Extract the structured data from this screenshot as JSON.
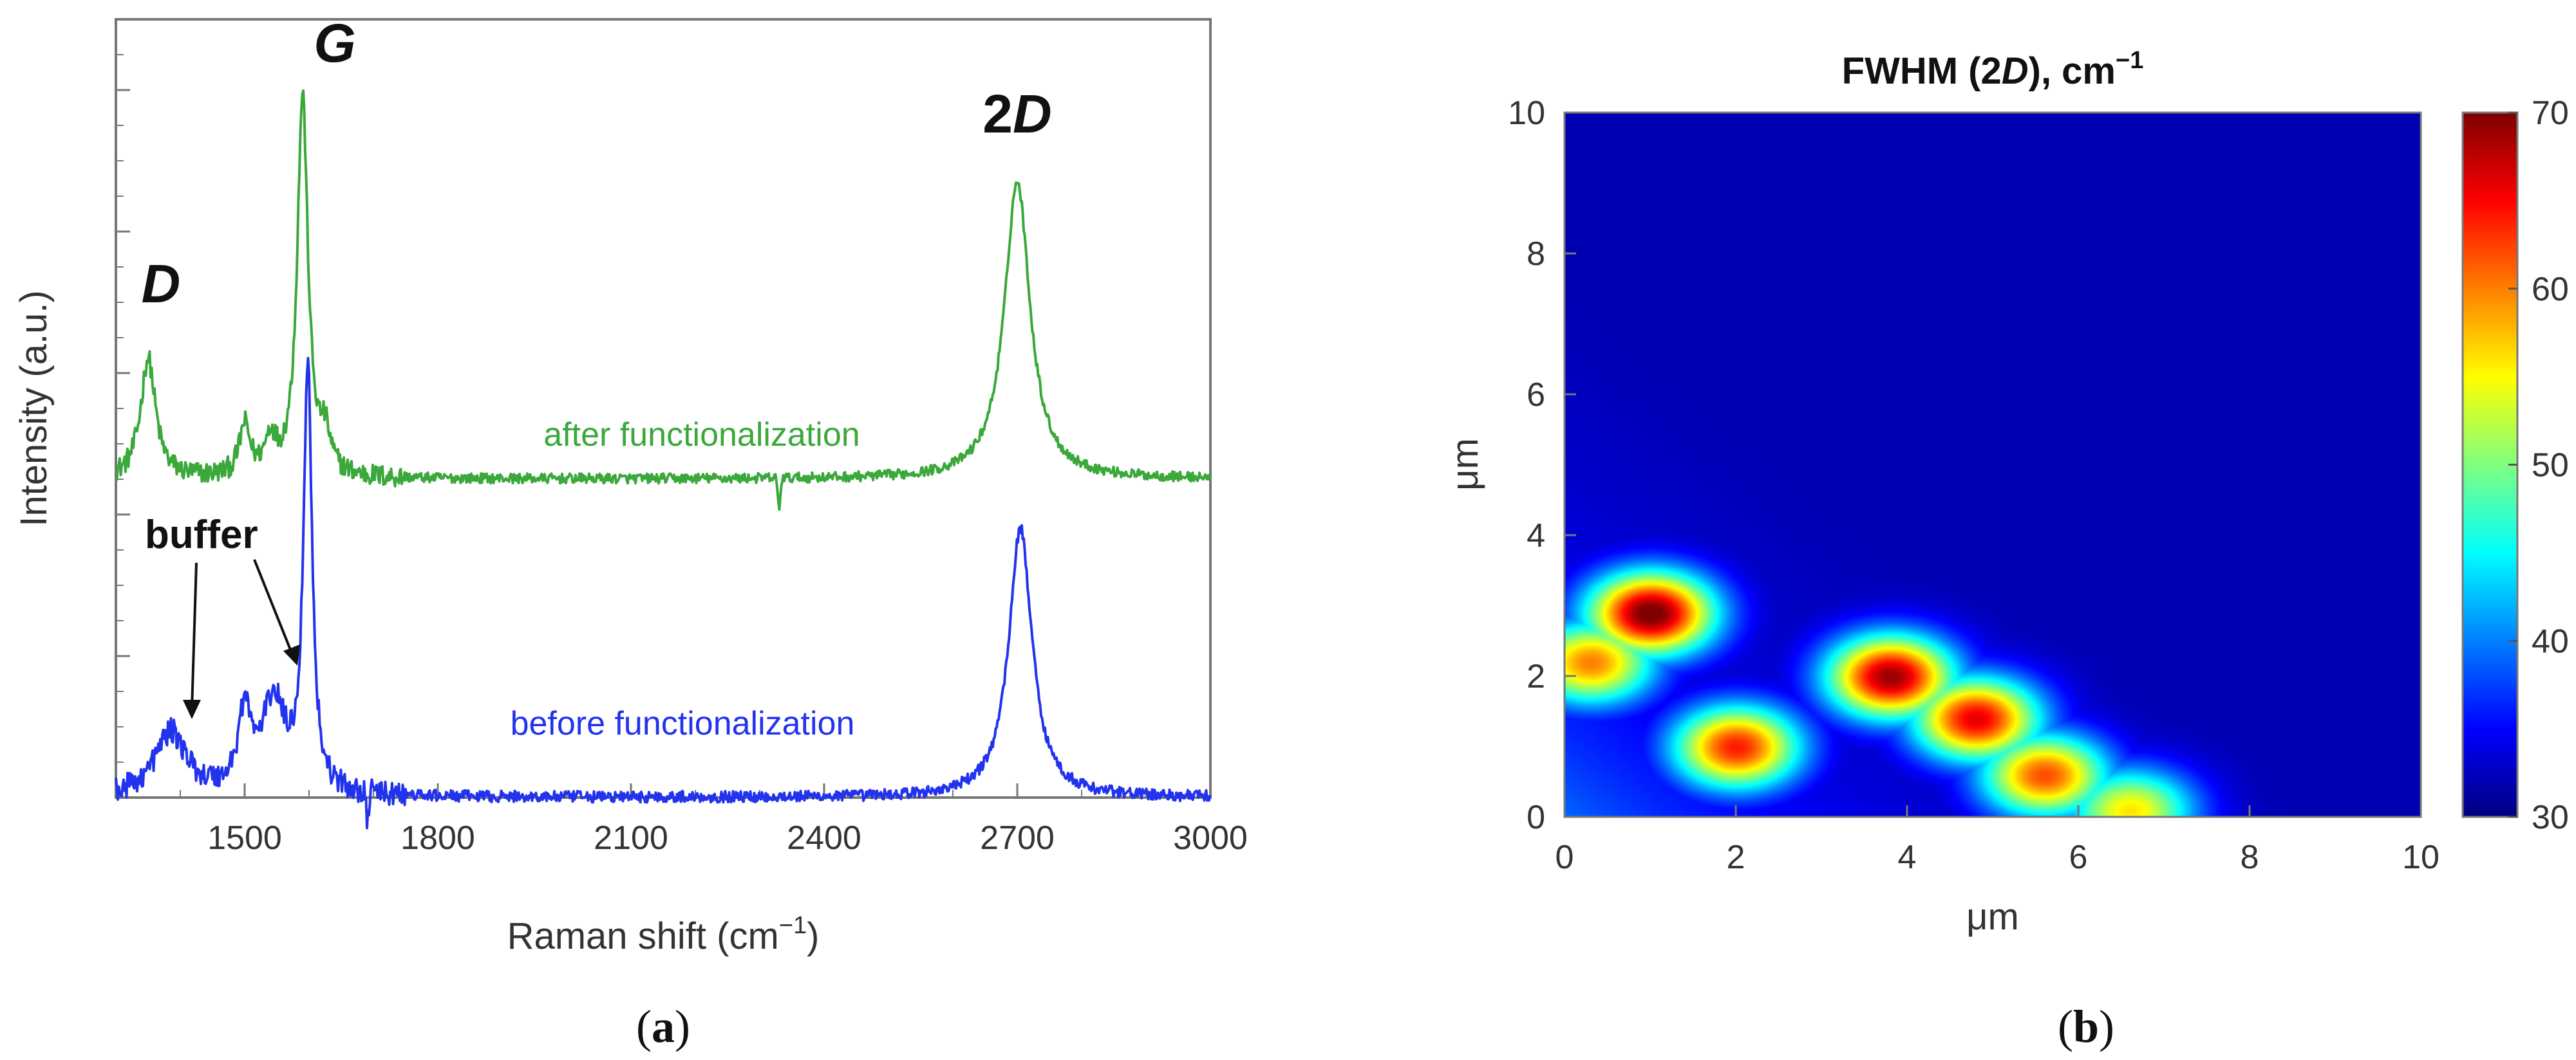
{
  "chart_data": [
    {
      "panel": "(a)",
      "panel_label": {
        "open": "(",
        "letter": "a",
        "close": ")"
      },
      "type": "line",
      "title": "",
      "xlabel": {
        "main": "Raman shift (cm",
        "sup": "−1",
        "close": ")"
      },
      "ylabel": "Intensity (a.u.)",
      "xlim": [
        1300,
        3000
      ],
      "ylim": [
        0,
        5.5
      ],
      "xticks": [
        "1500",
        "1800",
        "2100",
        "2400",
        "2700",
        "3000"
      ],
      "xtick_values": [
        1500,
        1800,
        2100,
        2400,
        2700,
        3000
      ],
      "grid": false,
      "peak_labels": [
        {
          "text": "D",
          "x": 1370,
          "y": 3.5
        },
        {
          "text": "G",
          "x": 1610,
          "y": 5.2
        },
        {
          "text_main": "2",
          "text_italic": "D",
          "x": 2700,
          "y": 4.7
        }
      ],
      "annotation": {
        "text": "buffer",
        "arrows_to": [
          [
            1390,
            0.55
          ],
          [
            1540,
            0.9
          ]
        ]
      },
      "series": [
        {
          "name": "after functionalization",
          "color": "#3aa83a",
          "baseline": 2.25,
          "noise": 0.035,
          "peaks": [
            {
              "center": 1350,
              "height": 0.85,
              "width": 14
            },
            {
              "center": 1500,
              "height": 0.35,
              "width": 10
            },
            {
              "center": 1540,
              "height": 0.25,
              "width": 10
            },
            {
              "center": 1590,
              "height": 2.7,
              "width": 10
            },
            {
              "center": 1625,
              "height": 0.25,
              "width": 10
            },
            {
              "center": 2700,
              "height": 2.1,
              "width": 24
            }
          ],
          "dips": [
            {
              "center": 2330,
              "depth": 0.22
            }
          ]
        },
        {
          "name": "before functionalization",
          "color": "#2233ee",
          "baseline": 0.0,
          "noise": 0.04,
          "peaks": [
            {
              "center": 1385,
              "height": 0.45,
              "width": 30
            },
            {
              "center": 1500,
              "height": 0.55,
              "width": 12
            },
            {
              "center": 1545,
              "height": 0.65,
              "width": 22
            },
            {
              "center": 1598,
              "height": 3.0,
              "width": 8
            },
            {
              "center": 2705,
              "height": 1.9,
              "width": 22
            }
          ],
          "dips": [
            {
              "center": 1690,
              "depth": 0.2
            }
          ]
        }
      ]
    },
    {
      "panel": "(b)",
      "panel_label": {
        "open": "(",
        "letter": "b",
        "close": ")"
      },
      "type": "heatmap",
      "title": {
        "prefix": "FWHM (2",
        "italic": "D",
        "suffix": "), cm",
        "sup": "−1"
      },
      "xlabel": "μm",
      "ylabel": "μm",
      "xlim": [
        0,
        10
      ],
      "ylim": [
        0,
        10
      ],
      "xticks": [
        "0",
        "2",
        "4",
        "6",
        "8",
        "10"
      ],
      "yticks": [
        "0",
        "2",
        "4",
        "6",
        "8",
        "10"
      ],
      "colorbar": {
        "min": 30,
        "max": 70,
        "ticks": [
          "30",
          "40",
          "50",
          "60",
          "70"
        ],
        "colormap": "jet"
      },
      "background_value": 32,
      "hotspots": [
        {
          "x": 1.0,
          "y": 2.9,
          "value": 71
        },
        {
          "x": 0.3,
          "y": 2.2,
          "value": 60
        },
        {
          "x": 2.0,
          "y": 1.0,
          "value": 64
        },
        {
          "x": 3.8,
          "y": 2.0,
          "value": 69
        },
        {
          "x": 4.8,
          "y": 1.4,
          "value": 66
        },
        {
          "x": 5.6,
          "y": 0.6,
          "value": 62
        },
        {
          "x": 6.6,
          "y": 0.1,
          "value": 56
        }
      ]
    }
  ]
}
